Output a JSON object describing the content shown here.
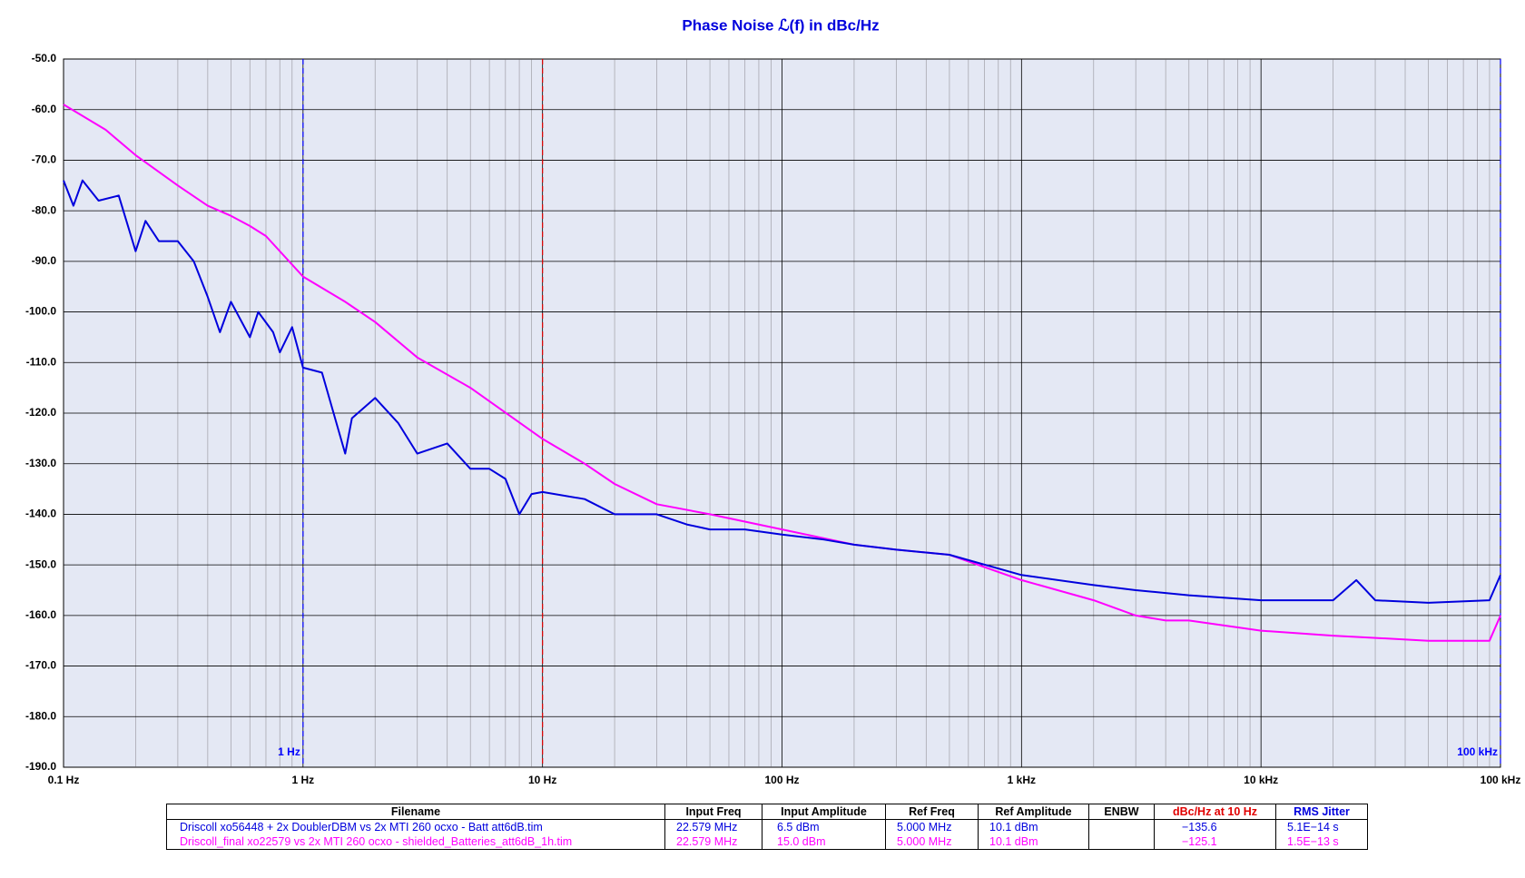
{
  "chart_data": {
    "type": "line",
    "title": "Phase Noise ℒ(f) in dBc/Hz",
    "xscale": "log",
    "grid": true,
    "minor_grid": true,
    "xlim": [
      0.1,
      100000
    ],
    "ylim": [
      -190,
      -50
    ],
    "xticks": [
      {
        "value": 0.1,
        "label": "0.1 Hz"
      },
      {
        "value": 1,
        "label": "1 Hz"
      },
      {
        "value": 10,
        "label": "10 Hz"
      },
      {
        "value": 100,
        "label": "100 Hz"
      },
      {
        "value": 1000,
        "label": "1 kHz"
      },
      {
        "value": 10000,
        "label": "10 kHz"
      },
      {
        "value": 100000,
        "label": "100 kHz"
      }
    ],
    "yticks": [
      {
        "value": -50,
        "label": "-50.0"
      },
      {
        "value": -60,
        "label": "-60.0"
      },
      {
        "value": -70,
        "label": "-70.0"
      },
      {
        "value": -80,
        "label": "-80.0"
      },
      {
        "value": -90,
        "label": "-90.0"
      },
      {
        "value": -100,
        "label": "-100.0"
      },
      {
        "value": -110,
        "label": "-110.0"
      },
      {
        "value": -120,
        "label": "-120.0"
      },
      {
        "value": -130,
        "label": "-130.0"
      },
      {
        "value": -140,
        "label": "-140.0"
      },
      {
        "value": -150,
        "label": "-150.0"
      },
      {
        "value": -160,
        "label": "-160.0"
      },
      {
        "value": -170,
        "label": "-170.0"
      },
      {
        "value": -180,
        "label": "-180.0"
      },
      {
        "value": -190,
        "label": "-190.0"
      }
    ],
    "markers": [
      {
        "x": 1,
        "color": "#0000ff",
        "label": "1 Hz"
      },
      {
        "x": 10,
        "color": "#e00000"
      },
      {
        "x": 100000,
        "color": "#0000ff",
        "label": "100 kHz"
      }
    ],
    "series": [
      {
        "name": "Driscoll xo56448 + 2x DoublerDBM vs 2x MTI 260 ocxo - Batt att6dB.tim",
        "color": "#0000dd",
        "x": [
          0.1,
          0.11,
          0.12,
          0.14,
          0.17,
          0.2,
          0.22,
          0.25,
          0.3,
          0.35,
          0.4,
          0.45,
          0.5,
          0.6,
          0.65,
          0.75,
          0.8,
          0.9,
          1,
          1.2,
          1.5,
          1.6,
          2,
          2.5,
          3,
          4,
          5,
          6,
          7,
          8,
          9,
          10,
          15,
          20,
          30,
          40,
          50,
          70,
          100,
          150,
          200,
          300,
          500,
          1000,
          2000,
          3000,
          5000,
          10000,
          20000,
          25000,
          30000,
          50000,
          90000,
          100000
        ],
        "values": [
          -74,
          -79,
          -74,
          -78,
          -77,
          -88,
          -82,
          -86,
          -86,
          -90,
          -97,
          -104,
          -98,
          -105,
          -100,
          -104,
          -108,
          -103,
          -111,
          -112,
          -128,
          -121,
          -117,
          -122,
          -128,
          -126,
          -131,
          -131,
          -133,
          -140,
          -136,
          -135.6,
          -137,
          -140,
          -140,
          -142,
          -143,
          -143,
          -144,
          -145,
          -146,
          -147,
          -148,
          -152,
          -154,
          -155,
          -156,
          -157,
          -157,
          -153,
          -157,
          -157.5,
          -157,
          -152
        ]
      },
      {
        "name": "Driscoll_final xo22579 vs 2x MTI 260 ocxo - shielded_Batteries_att6dB_1h.tim",
        "color": "#ff00ff",
        "x": [
          0.1,
          0.15,
          0.2,
          0.3,
          0.4,
          0.5,
          0.6,
          0.7,
          1,
          1.5,
          2,
          3,
          5,
          10,
          15,
          20,
          30,
          50,
          100,
          200,
          300,
          500,
          1000,
          2000,
          3000,
          4000,
          5000,
          10000,
          20000,
          50000,
          90000,
          100000
        ],
        "values": [
          -59,
          -64,
          -69,
          -75,
          -79,
          -81,
          -83,
          -85,
          -93,
          -98,
          -102,
          -109,
          -115,
          -125.1,
          -130,
          -134,
          -138,
          -140,
          -143,
          -146,
          -147,
          -148,
          -153,
          -157,
          -160,
          -161,
          -161,
          -163,
          -164,
          -165,
          -165,
          -160
        ]
      }
    ]
  },
  "table": {
    "columns": [
      "Filename",
      "Input Freq",
      "Input Amplitude",
      "Ref Freq",
      "Ref Amplitude",
      "ENBW",
      "dBc/Hz at 10 Hz",
      "RMS Jitter"
    ],
    "rows": [
      [
        "Driscoll xo56448 + 2x DoublerDBM vs 2x MTI 260 ocxo - Batt att6dB.tim",
        "22.579 MHz",
        "6.5 dBm",
        "5.000 MHz",
        "10.1 dBm",
        null,
        "−135.6",
        "5.1E−14 s"
      ],
      [
        "Driscoll_final xo22579 vs 2x MTI 260 ocxo - shielded_Batteries_att6dB_1h.tim",
        "22.579 MHz",
        "15.0 dBm",
        "5.000 MHz",
        "10.1 dBm",
        null,
        "−125.1",
        "1.5E−13 s"
      ]
    ]
  }
}
